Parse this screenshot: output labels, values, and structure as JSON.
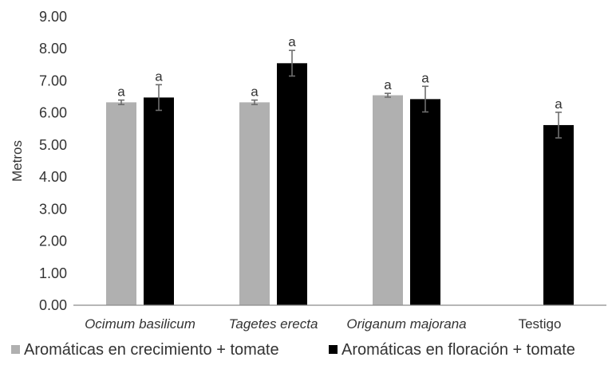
{
  "chart_data": {
    "type": "bar",
    "title": "",
    "xlabel": "",
    "ylabel": "Metros",
    "ylim": [
      0,
      9
    ],
    "yticks": [
      "0.00",
      "1.00",
      "2.00",
      "3.00",
      "4.00",
      "5.00",
      "6.00",
      "7.00",
      "8.00",
      "9.00"
    ],
    "grid": false,
    "legend_position": "bottom",
    "categories": [
      "Ocimum basilicum",
      "Tagetes erecta",
      "Origanum majorana",
      "Testigo"
    ],
    "categories_italic": [
      true,
      true,
      true,
      false
    ],
    "series": [
      {
        "name": "Aromáticas en crecimiento + tomate",
        "color": "#b0b0b0",
        "values": [
          6.33,
          6.33,
          6.55,
          null
        ],
        "errors": [
          0.07,
          0.07,
          0.06,
          null
        ],
        "significance": [
          "a",
          "a",
          "a",
          null
        ]
      },
      {
        "name": "Aromáticas en floración + tomate",
        "color": "#000000",
        "values": [
          6.48,
          7.55,
          6.43,
          5.62
        ],
        "errors": [
          0.4,
          0.4,
          0.4,
          0.4
        ],
        "significance": [
          "a",
          "a",
          "a",
          "a"
        ]
      }
    ]
  }
}
